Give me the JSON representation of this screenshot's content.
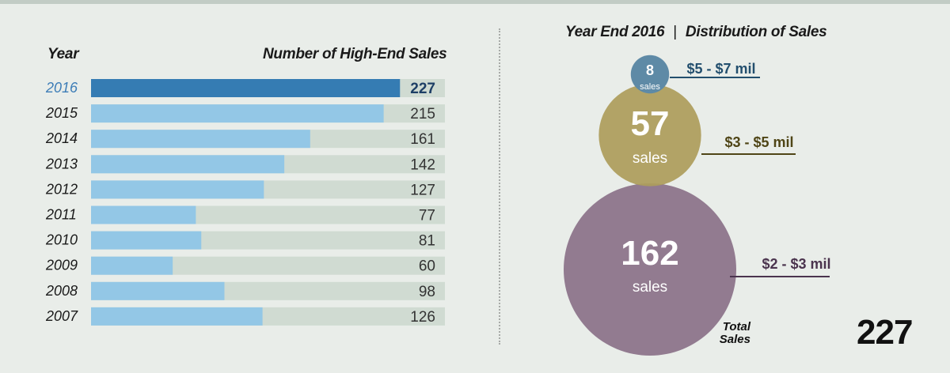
{
  "chart_data": [
    {
      "type": "bar",
      "orientation": "horizontal",
      "column_headers": {
        "year": "Year",
        "value": "Number of High-End Sales"
      },
      "categories": [
        "2016",
        "2015",
        "2014",
        "2013",
        "2012",
        "2011",
        "2010",
        "2009",
        "2008",
        "2007"
      ],
      "values": [
        227,
        215,
        161,
        142,
        127,
        77,
        81,
        60,
        98,
        126
      ],
      "highlight": "2016",
      "xlim": [
        0,
        260
      ],
      "colors": {
        "highlight": "#357cb3",
        "bar": "#93c7e6",
        "track": "#d0dbd2",
        "highlight_label": "#3d7db7",
        "text": "#1a1a1a"
      }
    },
    {
      "type": "bubble",
      "title_left": "Year End 2016",
      "title_separator": "|",
      "title_right": "Distribution of Sales",
      "unit_label": "sales",
      "bubbles": [
        {
          "label": "$5 - $7 mil",
          "value": 8,
          "color": "#5e8aa6",
          "label_color": "#234f6e"
        },
        {
          "label": "$3 - $5 mil",
          "value": 57,
          "color": "#ad9d5b",
          "label_color": "#4f4516"
        },
        {
          "label": "$2 - $3 mil",
          "value": 162,
          "color": "#927b90",
          "label_color": "#4b344e"
        }
      ],
      "total": {
        "label_line1": "Total",
        "label_line2": "Sales",
        "value": 227
      }
    }
  ]
}
